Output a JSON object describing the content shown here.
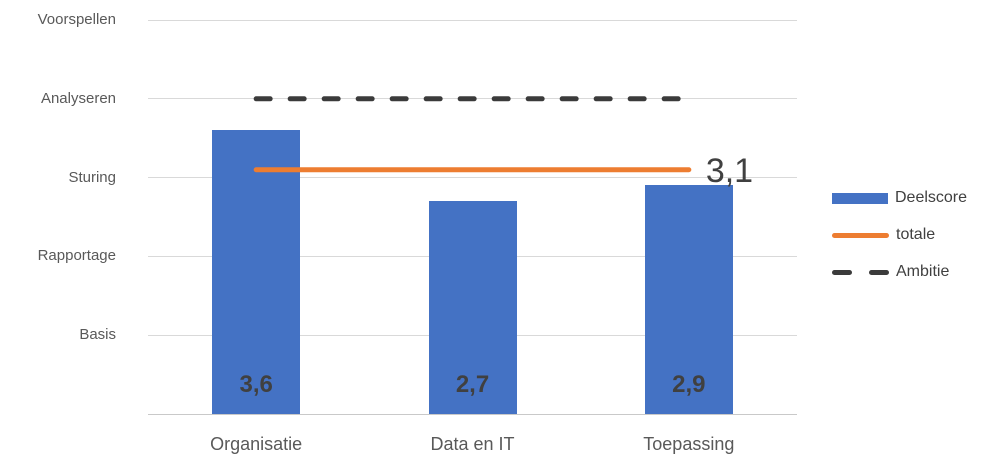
{
  "chart_data": {
    "type": "bar",
    "title": "",
    "categories": [
      "Organisatie",
      "Data en IT",
      "Toepassing"
    ],
    "series": [
      {
        "name": "Deelscore",
        "kind": "bar",
        "values": [
          3.6,
          2.7,
          2.9
        ],
        "value_labels": [
          "3,6",
          "2,7",
          "2,9"
        ],
        "color": "#4472C4"
      },
      {
        "name": "totale",
        "kind": "line",
        "values": [
          3.1,
          3.1,
          3.1
        ],
        "color": "#ED7D31",
        "dashed": false,
        "annotation": "3,1"
      },
      {
        "name": "Ambitie",
        "kind": "line",
        "values": [
          4,
          4,
          4
        ],
        "color": "#3B3B3B",
        "dashed": true,
        "annotation": ""
      }
    ],
    "y_axis": {
      "min": 0,
      "max": 5,
      "tick_values": [
        1,
        2,
        3,
        4,
        5
      ],
      "tick_labels": [
        "Basis",
        "Rapportage",
        "Sturing",
        "Analyseren",
        "Voorspellen"
      ]
    },
    "grid": true,
    "legend_position": "right",
    "colors": {
      "background": "#ffffff",
      "gridline": "#d9d9d9",
      "axis_line": "#c9c9c9",
      "tick_label": "#595959",
      "category_label": "#595959",
      "value_label": "#404040",
      "annotation_label": "#404040"
    }
  }
}
